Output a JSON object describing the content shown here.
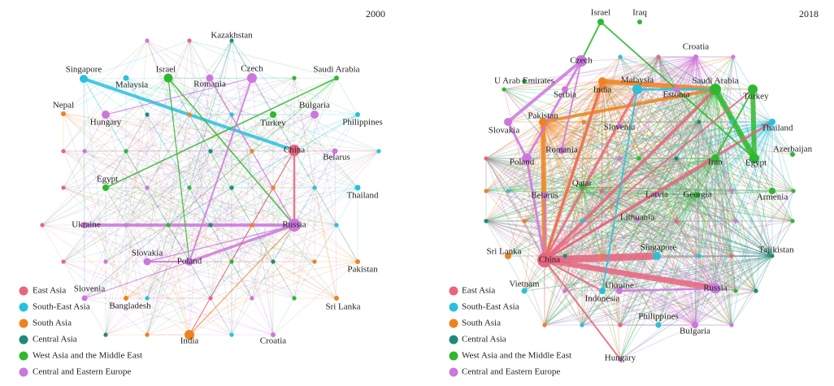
{
  "panels": [
    {
      "year": "2000",
      "nodes": [
        {
          "label": "Kazakhstan",
          "color": "#1e8a7a"
        },
        {
          "label": "Singapore",
          "color": "#29c0de"
        },
        {
          "label": "Malaysia",
          "color": "#29c0de"
        },
        {
          "label": "Israel",
          "color": "#2fb82f"
        },
        {
          "label": "Romania",
          "color": "#cc77dd"
        },
        {
          "label": "Czech",
          "color": "#cc77dd"
        },
        {
          "label": "Saudi Arabia",
          "color": "#2fb82f"
        },
        {
          "label": "Nepal",
          "color": "#f0821e"
        },
        {
          "label": "Hungary",
          "color": "#cc77dd"
        },
        {
          "label": "Bulgaria",
          "color": "#cc77dd"
        },
        {
          "label": "Turkey",
          "color": "#2fb82f"
        },
        {
          "label": "Philippines",
          "color": "#29c0de"
        },
        {
          "label": "China",
          "color": "#e8657f"
        },
        {
          "label": "Belarus",
          "color": "#cc77dd"
        },
        {
          "label": "Egypt",
          "color": "#2fb82f"
        },
        {
          "label": "Thailand",
          "color": "#29c0de"
        },
        {
          "label": "Ukraine",
          "color": "#cc77dd"
        },
        {
          "label": "Russia",
          "color": "#cc77dd"
        },
        {
          "label": "Slovakia",
          "color": "#cc77dd"
        },
        {
          "label": "Poland",
          "color": "#cc77dd"
        },
        {
          "label": "Pakistan",
          "color": "#f0821e"
        },
        {
          "label": "Slovenia",
          "color": "#cc77dd"
        },
        {
          "label": "Bangladesh",
          "color": "#f0821e"
        },
        {
          "label": "Sri Lanka",
          "color": "#f0821e"
        },
        {
          "label": "India",
          "color": "#f0821e"
        },
        {
          "label": "Croatia",
          "color": "#cc77dd"
        }
      ],
      "legend": [
        {
          "label": "East Asia",
          "color": "#e8657f"
        },
        {
          "label": "South-East Asia",
          "color": "#29c0de"
        },
        {
          "label": "South Asia",
          "color": "#f0821e"
        },
        {
          "label": "Central Asia",
          "color": "#1e8a7a"
        },
        {
          "label": "West Asia and the Middle East",
          "color": "#2fb82f"
        },
        {
          "label": "Central and Eastern Europe",
          "color": "#cc77dd"
        }
      ]
    },
    {
      "year": "2018",
      "nodes": [
        {
          "label": "Israel",
          "color": "#2fb82f"
        },
        {
          "label": "Iraq",
          "color": "#2fb82f"
        },
        {
          "label": "Croatia",
          "color": "#cc77dd"
        },
        {
          "label": "Czech",
          "color": "#cc77dd"
        },
        {
          "label": "U Arab Emirates",
          "color": "#2fb82f"
        },
        {
          "label": "India",
          "color": "#f0821e"
        },
        {
          "label": "Malaysia",
          "color": "#29c0de"
        },
        {
          "label": "Serbia",
          "color": "#cc77dd"
        },
        {
          "label": "Saudi Arabia",
          "color": "#2fb82f"
        },
        {
          "label": "Estonia",
          "color": "#cc77dd"
        },
        {
          "label": "Turkey",
          "color": "#2fb82f"
        },
        {
          "label": "Pakistan",
          "color": "#f0821e"
        },
        {
          "label": "Slovenia",
          "color": "#cc77dd"
        },
        {
          "label": "Slovakia",
          "color": "#cc77dd"
        },
        {
          "label": "Thailand",
          "color": "#29c0de"
        },
        {
          "label": "Romania",
          "color": "#cc77dd"
        },
        {
          "label": "Azerbaijan",
          "color": "#2fb82f"
        },
        {
          "label": "Iran",
          "color": "#2fb82f"
        },
        {
          "label": "Egypt",
          "color": "#2fb82f"
        },
        {
          "label": "Poland",
          "color": "#cc77dd"
        },
        {
          "label": "Qatar",
          "color": "#2fb82f"
        },
        {
          "label": "Belarus",
          "color": "#cc77dd"
        },
        {
          "label": "Latvia",
          "color": "#cc77dd"
        },
        {
          "label": "Georgia",
          "color": "#2fb82f"
        },
        {
          "label": "Armenia",
          "color": "#2fb82f"
        },
        {
          "label": "Lithuania",
          "color": "#cc77dd"
        },
        {
          "label": "Tajikistan",
          "color": "#1e8a7a"
        },
        {
          "label": "Sri Lanka",
          "color": "#f0821e"
        },
        {
          "label": "Singapore",
          "color": "#29c0de"
        },
        {
          "label": "China",
          "color": "#e8657f"
        },
        {
          "label": "Vietnam",
          "color": "#29c0de"
        },
        {
          "label": "Ukraine",
          "color": "#cc77dd"
        },
        {
          "label": "Russia",
          "color": "#cc77dd"
        },
        {
          "label": "Indonesia",
          "color": "#29c0de"
        },
        {
          "label": "Philippines",
          "color": "#29c0de"
        },
        {
          "label": "Bulgaria",
          "color": "#cc77dd"
        },
        {
          "label": "Hungary",
          "color": "#cc77dd"
        }
      ],
      "legend": [
        {
          "label": "East Asia",
          "color": "#e8657f"
        },
        {
          "label": "South-East Asia",
          "color": "#29c0de"
        },
        {
          "label": "South Asia",
          "color": "#f0821e"
        },
        {
          "label": "Central Asia",
          "color": "#1e8a7a"
        },
        {
          "label": "West Asia and the Middle East",
          "color": "#2fb82f"
        },
        {
          "label": "Central and Eastern Europe",
          "color": "#cc77dd"
        }
      ]
    }
  ]
}
